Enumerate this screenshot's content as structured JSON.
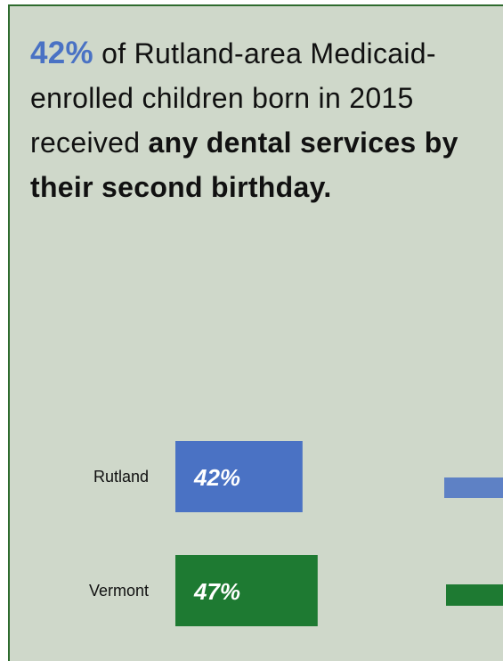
{
  "headline": {
    "pct": "42%",
    "text_before": " of Rutland-area Medicaid-enrolled children born in 2015 received ",
    "bold_text": "any dental services by their second birthday."
  },
  "chart_data": {
    "type": "bar",
    "orientation": "horizontal",
    "categories": [
      "Rutland",
      "Vermont"
    ],
    "values": [
      42,
      47
    ],
    "value_labels": [
      "42%",
      "47%"
    ],
    "unit": "%",
    "colors": [
      "#4a72c4",
      "#1e7a32"
    ],
    "title": "",
    "xlabel": "",
    "ylabel": "",
    "grid": false,
    "legend": "none"
  },
  "colors": {
    "background": "#cfd8ca",
    "border": "#2e6b2e",
    "accent_blue": "#4a72c4",
    "accent_green": "#1e7a32"
  }
}
